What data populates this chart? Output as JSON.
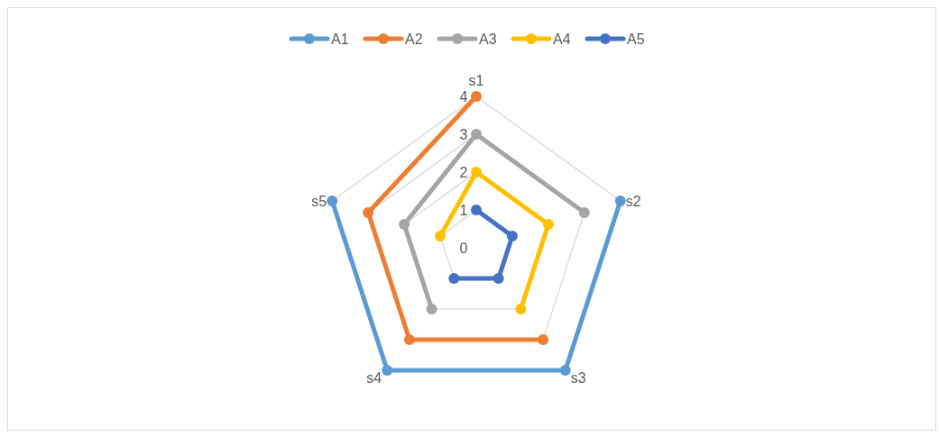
{
  "chart_data": {
    "type": "radar",
    "categories": [
      "s1",
      "s2",
      "s3",
      "s4",
      "s5"
    ],
    "ylim": [
      0,
      4
    ],
    "yticks": [
      0,
      1,
      2,
      3,
      4
    ],
    "grid": true,
    "legend": "top",
    "marker": "circle",
    "series": [
      {
        "name": "A1",
        "color": "#5b9bd5",
        "values": [
          null,
          4,
          4,
          4,
          4
        ]
      },
      {
        "name": "A2",
        "color": "#ed7d31",
        "values": [
          4,
          null,
          3,
          3,
          3
        ]
      },
      {
        "name": "A3",
        "color": "#a5a5a5",
        "values": [
          3,
          3,
          null,
          2,
          2
        ]
      },
      {
        "name": "A4",
        "color": "#ffc000",
        "values": [
          2,
          2,
          2,
          null,
          1
        ]
      },
      {
        "name": "A5",
        "color": "#4472c4",
        "values": [
          1,
          1,
          1,
          1,
          null
        ]
      }
    ]
  }
}
